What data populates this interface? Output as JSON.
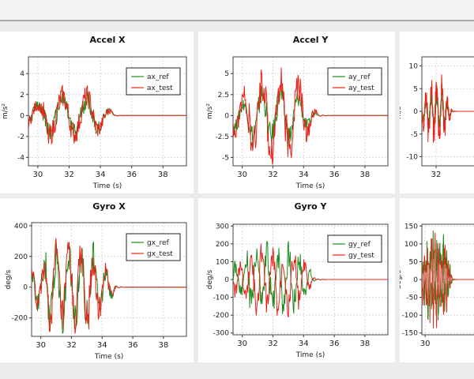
{
  "colors": {
    "ref": "#1e8c1e",
    "test": "#e8231a"
  },
  "chart_data": [
    {
      "type": "line",
      "title": "Accel X",
      "xlabel": "Time (s)",
      "ylabel": "m/s²",
      "xlim": [
        29.4,
        39.5
      ],
      "ylim": [
        -4.8,
        5.6
      ],
      "xticks": [
        "30",
        "32",
        "34",
        "36",
        "38"
      ],
      "yticks": [
        "4",
        "2",
        "0",
        "-2",
        "-4"
      ],
      "legend_position": "top-right",
      "series": [
        {
          "name": "ax_ref",
          "color_key": "ref",
          "amp_key": 0.9
        },
        {
          "name": "ax_test",
          "color_key": "test",
          "amp_key": 1.0
        }
      ],
      "approx_peak": 3.0,
      "settle_time": 35.0
    },
    {
      "type": "line",
      "title": "Accel Y",
      "xlabel": "Time (s)",
      "ylabel": "m/s²",
      "xlim": [
        29.4,
        39.5
      ],
      "ylim": [
        -6.0,
        7.0
      ],
      "xticks": [
        "30",
        "32",
        "34",
        "36",
        "38"
      ],
      "yticks": [
        "5",
        "2.5",
        "0",
        "-2.5",
        "-5"
      ],
      "legend_position": "top-right",
      "series": [
        {
          "name": "ay_ref",
          "color_key": "ref",
          "amp_key": 0.6
        },
        {
          "name": "ay_test",
          "color_key": "test",
          "amp_key": 1.0
        }
      ],
      "approx_peak": 6.8,
      "settle_time": 35.0
    },
    {
      "type": "line",
      "title": "",
      "xlabel": "",
      "ylabel": "m/s²",
      "xlim": [
        29.4,
        39.5
      ],
      "ylim": [
        -12,
        12
      ],
      "xticks": [
        "32"
      ],
      "yticks": [
        "10",
        "5",
        "0",
        "-5",
        "-10"
      ],
      "legend_position": "top-right",
      "series": [
        {
          "name": "",
          "color_key": "ref",
          "amp_key": 0.5
        },
        {
          "name": "",
          "color_key": "test",
          "amp_key": 1.0
        }
      ],
      "approx_peak": 9.0,
      "settle_time": 35.0
    },
    {
      "type": "line",
      "title": "Gyro X",
      "xlabel": "Time (s)",
      "ylabel": "deg/s",
      "xlim": [
        29.4,
        39.5
      ],
      "ylim": [
        -320,
        420
      ],
      "xticks": [
        "30",
        "32",
        "34",
        "36",
        "38"
      ],
      "yticks": [
        "400",
        "200",
        "0",
        "-200"
      ],
      "legend_position": "top-right",
      "series": [
        {
          "name": "gx_ref",
          "color_key": "ref",
          "amp_key": 1.0
        },
        {
          "name": "gx_test",
          "color_key": "test",
          "amp_key": 1.0
        }
      ],
      "approx_peak": 340,
      "settle_time": 35.0
    },
    {
      "type": "line",
      "title": "Gyro Y",
      "xlabel": "Time (s)",
      "ylabel": "deg/s",
      "xlim": [
        29.4,
        39.5
      ],
      "ylim": [
        -310,
        310
      ],
      "xticks": [
        "30",
        "32",
        "34",
        "36",
        "38"
      ],
      "yticks": [
        "300",
        "200",
        "100",
        "0",
        "-100",
        "-200",
        "-300"
      ],
      "legend_position": "top-right",
      "series": [
        {
          "name": "gy_ref",
          "color_key": "ref",
          "amp_key": 1.0
        },
        {
          "name": "gy_test",
          "color_key": "test",
          "amp_key": -1.0
        }
      ],
      "approx_peak": 230,
      "settle_time": 34.8
    },
    {
      "type": "line",
      "title": "",
      "xlabel": "",
      "ylabel": "deg/s",
      "xlim": [
        29.4,
        39.5
      ],
      "ylim": [
        -155,
        155
      ],
      "xticks": [
        "30"
      ],
      "yticks": [
        "150",
        "100",
        "50",
        "0",
        "-50",
        "-100",
        "-150"
      ],
      "legend_position": "top-right",
      "series": [
        {
          "name": "",
          "color_key": "ref",
          "amp_key": 1.0
        },
        {
          "name": "",
          "color_key": "test",
          "amp_key": -1.0
        }
      ],
      "approx_peak": 145,
      "settle_time": 35.0
    }
  ]
}
